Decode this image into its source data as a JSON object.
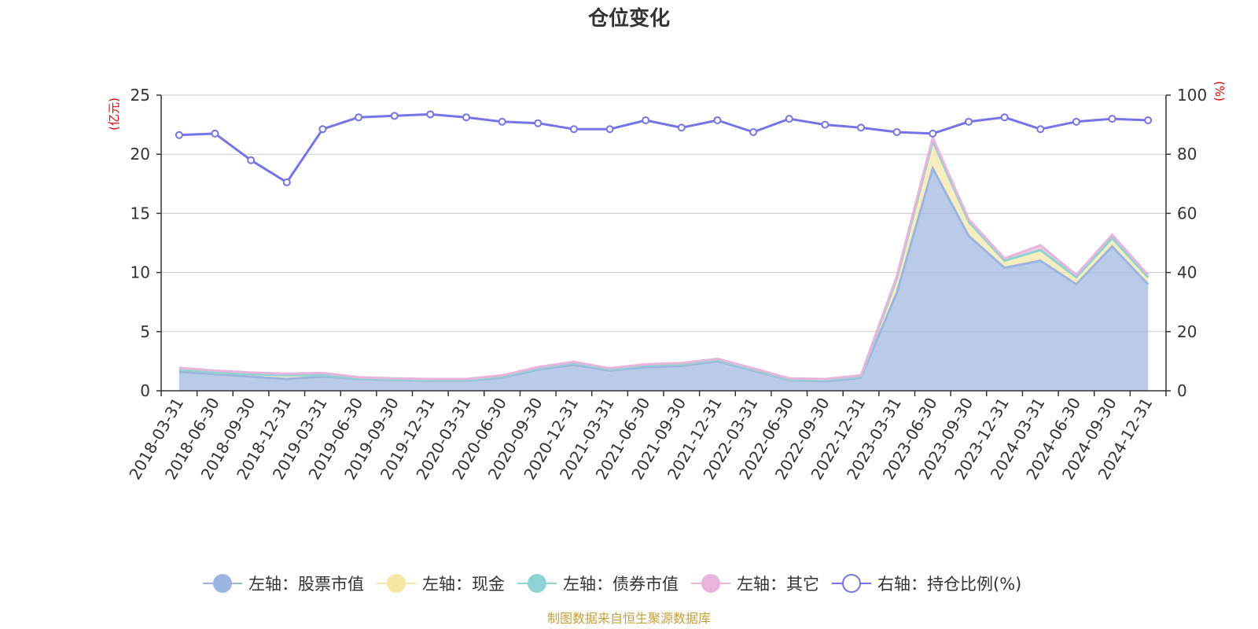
{
  "chart_data": {
    "type": "area",
    "title": "仓位变化",
    "left_unit": "(亿元)",
    "right_unit": "(%)",
    "source": "制图数据来自恒生聚源数据库",
    "ylim_left": [
      0,
      25
    ],
    "ylim_right": [
      0,
      100
    ],
    "yticks_left": [
      0,
      5,
      10,
      15,
      20,
      25
    ],
    "yticks_right": [
      0,
      20,
      40,
      60,
      80,
      100
    ],
    "grid": true,
    "legend_position": "bottom",
    "categories": [
      "2018-03-31",
      "2018-06-30",
      "2018-09-30",
      "2018-12-31",
      "2019-03-31",
      "2019-06-30",
      "2019-09-30",
      "2019-12-31",
      "2020-03-31",
      "2020-06-30",
      "2020-09-30",
      "2020-12-31",
      "2021-03-31",
      "2021-06-30",
      "2021-09-30",
      "2021-12-31",
      "2022-03-31",
      "2022-06-30",
      "2022-09-30",
      "2022-12-31",
      "2023-03-31",
      "2023-06-30",
      "2023-09-30",
      "2023-12-31",
      "2024-03-31",
      "2024-06-30",
      "2024-09-30",
      "2024-12-31"
    ],
    "series": [
      {
        "name": "左轴：股票市值",
        "axis": "left",
        "color": "#9bb5e0",
        "values": [
          1.6,
          1.4,
          1.2,
          1.0,
          1.2,
          1.0,
          0.9,
          0.85,
          0.85,
          1.1,
          1.8,
          2.2,
          1.7,
          2.0,
          2.1,
          2.5,
          1.7,
          0.9,
          0.8,
          1.1,
          8.3,
          18.8,
          13.1,
          10.4,
          11.0,
          9.0,
          12.2,
          9.0
        ]
      },
      {
        "name": "左轴：现金",
        "axis": "left",
        "color": "#f5e6a3",
        "values": [
          0.2,
          0.15,
          0.2,
          0.3,
          0.15,
          0.05,
          0.05,
          0.05,
          0.05,
          0.1,
          0.1,
          0.15,
          0.1,
          0.15,
          0.15,
          0.1,
          0.1,
          0.05,
          0.1,
          0.1,
          1.2,
          2.3,
          1.2,
          0.6,
          0.9,
          0.6,
          0.7,
          0.6
        ]
      },
      {
        "name": "左轴：债券市值",
        "axis": "left",
        "color": "#8dd3d3",
        "values": [
          0,
          0,
          0,
          0,
          0,
          0,
          0,
          0,
          0,
          0,
          0,
          0,
          0,
          0,
          0,
          0,
          0,
          0,
          0,
          0,
          0,
          0,
          0,
          0,
          0,
          0,
          0,
          0
        ]
      },
      {
        "name": "左轴：其它",
        "axis": "left",
        "color": "#e8b4dc",
        "values": [
          0.15,
          0.15,
          0.15,
          0.15,
          0.15,
          0.1,
          0.1,
          0.1,
          0.1,
          0.1,
          0.1,
          0.1,
          0.1,
          0.1,
          0.1,
          0.1,
          0.1,
          0.1,
          0.1,
          0.1,
          0.2,
          0.3,
          0.2,
          0.2,
          0.4,
          0.2,
          0.3,
          0.2
        ]
      },
      {
        "name": "右轴：持仓比例(%)",
        "axis": "right",
        "color": "#7474e8",
        "values": [
          86.5,
          87,
          78,
          70.5,
          88.5,
          92.5,
          93,
          93.5,
          92.5,
          91,
          90.5,
          88.5,
          88.5,
          91.5,
          89,
          91.5,
          87.5,
          92,
          90,
          89,
          87.5,
          87,
          91,
          92.5,
          88.5,
          91,
          92,
          91.5
        ]
      }
    ]
  }
}
